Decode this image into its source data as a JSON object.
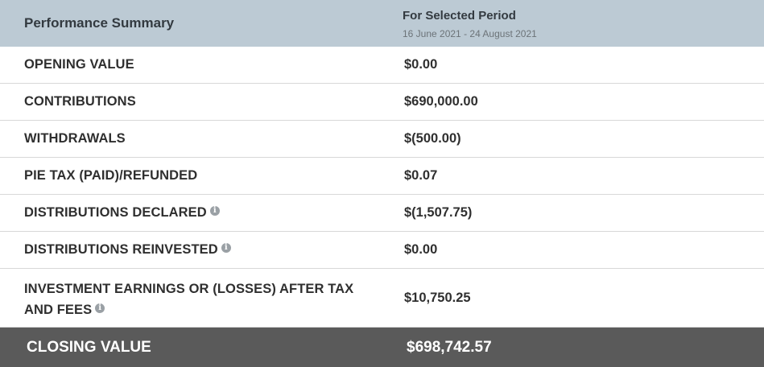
{
  "header": {
    "title": "Performance Summary",
    "period_title": "For Selected Period",
    "period_range": "16 June 2021 - 24 August 2021"
  },
  "rows": [
    {
      "label": "OPENING VALUE",
      "value": "$0.00"
    },
    {
      "label": "CONTRIBUTIONS",
      "value": "$690,000.00"
    },
    {
      "label": "WITHDRAWALS",
      "value": "$(500.00)"
    },
    {
      "label": "PIE TAX (PAID)/REFUNDED",
      "value": "$0.07"
    },
    {
      "label": "DISTRIBUTIONS DECLARED",
      "value": "$(1,507.75)",
      "icon": "info-icon"
    },
    {
      "label": "DISTRIBUTIONS REINVESTED",
      "value": "$0.00",
      "icon": "info-icon"
    },
    {
      "label": "INVESTMENT EARNINGS OR (LOSSES) AFTER TAX AND FEES",
      "value": "$10,750.25",
      "icon": "info-icon"
    }
  ],
  "closing": {
    "label": "CLOSING VALUE",
    "value": "$698,742.57"
  },
  "info_glyph": "i",
  "colors": {
    "header_bg": "#bccad4",
    "closing_bg": "#5a5a5a",
    "row_divider": "#d8d8d8",
    "info_icon": "#9aa0a5"
  }
}
